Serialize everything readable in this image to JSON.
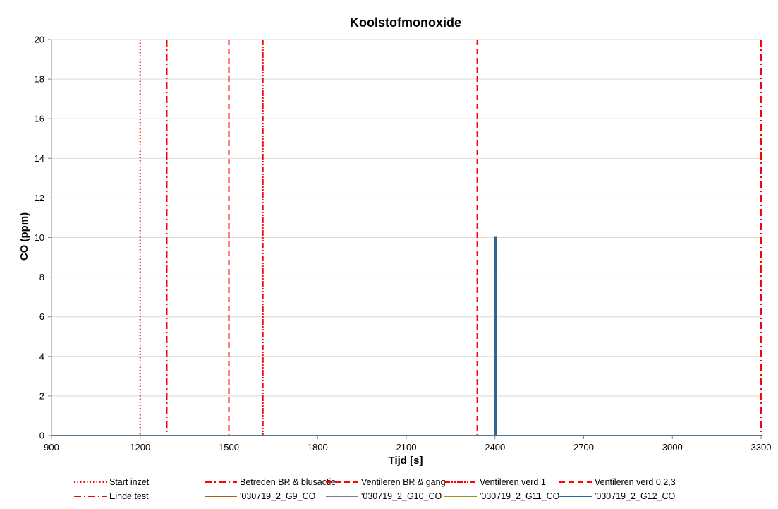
{
  "chart_data": {
    "type": "line",
    "title": "Koolstofmonoxide",
    "xlabel": "Tijd [s]",
    "ylabel": "CO (ppm)",
    "xlim": [
      900,
      3300
    ],
    "ylim": [
      0,
      20
    ],
    "x_ticks": [
      "900",
      "1200",
      "1500",
      "1800",
      "2100",
      "2400",
      "2700",
      "3000",
      "3300"
    ],
    "y_ticks": [
      "0",
      "2",
      "4",
      "6",
      "8",
      "10",
      "12",
      "14",
      "16",
      "18",
      "20"
    ],
    "grid": "horizontal",
    "legend_position": "bottom",
    "events": [
      {
        "name": "Start inzet",
        "x": 1200,
        "color": "#ff0000",
        "dash": "1.5,3"
      },
      {
        "name": "Betreden BR & blusactie",
        "x": 1290,
        "color": "#ff0000",
        "dash": "10,4,2,4"
      },
      {
        "name": "Ventileren BR & gang",
        "x": 1500,
        "color": "#ff0000",
        "dash": "8,5"
      },
      {
        "name": "Ventileren verd 1",
        "x": 1615,
        "color": "#ff0000",
        "dash": "8,2,2,2,2,2"
      },
      {
        "name": "Ventileren verd 0,2,3",
        "x": 2340,
        "color": "#ff0000",
        "dash": "8,5"
      },
      {
        "name": "Einde test",
        "x": 3300,
        "color": "#ff0000",
        "dash": "10,4,2,4"
      }
    ],
    "series": [
      {
        "name": "'030719_2_G9_CO",
        "color": "#b35a1f",
        "points": [
          [
            900,
            0
          ],
          [
            3300,
            0
          ]
        ]
      },
      {
        "name": "'030719_2_G10_CO",
        "color": "#808080",
        "points": [
          [
            900,
            0
          ],
          [
            3300,
            0
          ]
        ]
      },
      {
        "name": "'030719_2_G11_CO",
        "color": "#a08c1c",
        "points": [
          [
            900,
            0
          ],
          [
            3300,
            0
          ]
        ]
      },
      {
        "name": "'030719_2_G12_CO",
        "color": "#2e6591",
        "points": [
          [
            900,
            0
          ],
          [
            2400,
            0
          ],
          [
            2400,
            10
          ],
          [
            2402,
            10
          ],
          [
            2402,
            0
          ],
          [
            2404,
            0
          ],
          [
            2404,
            10
          ],
          [
            2405,
            10
          ],
          [
            2405,
            0
          ],
          [
            3300,
            0
          ]
        ]
      }
    ]
  }
}
